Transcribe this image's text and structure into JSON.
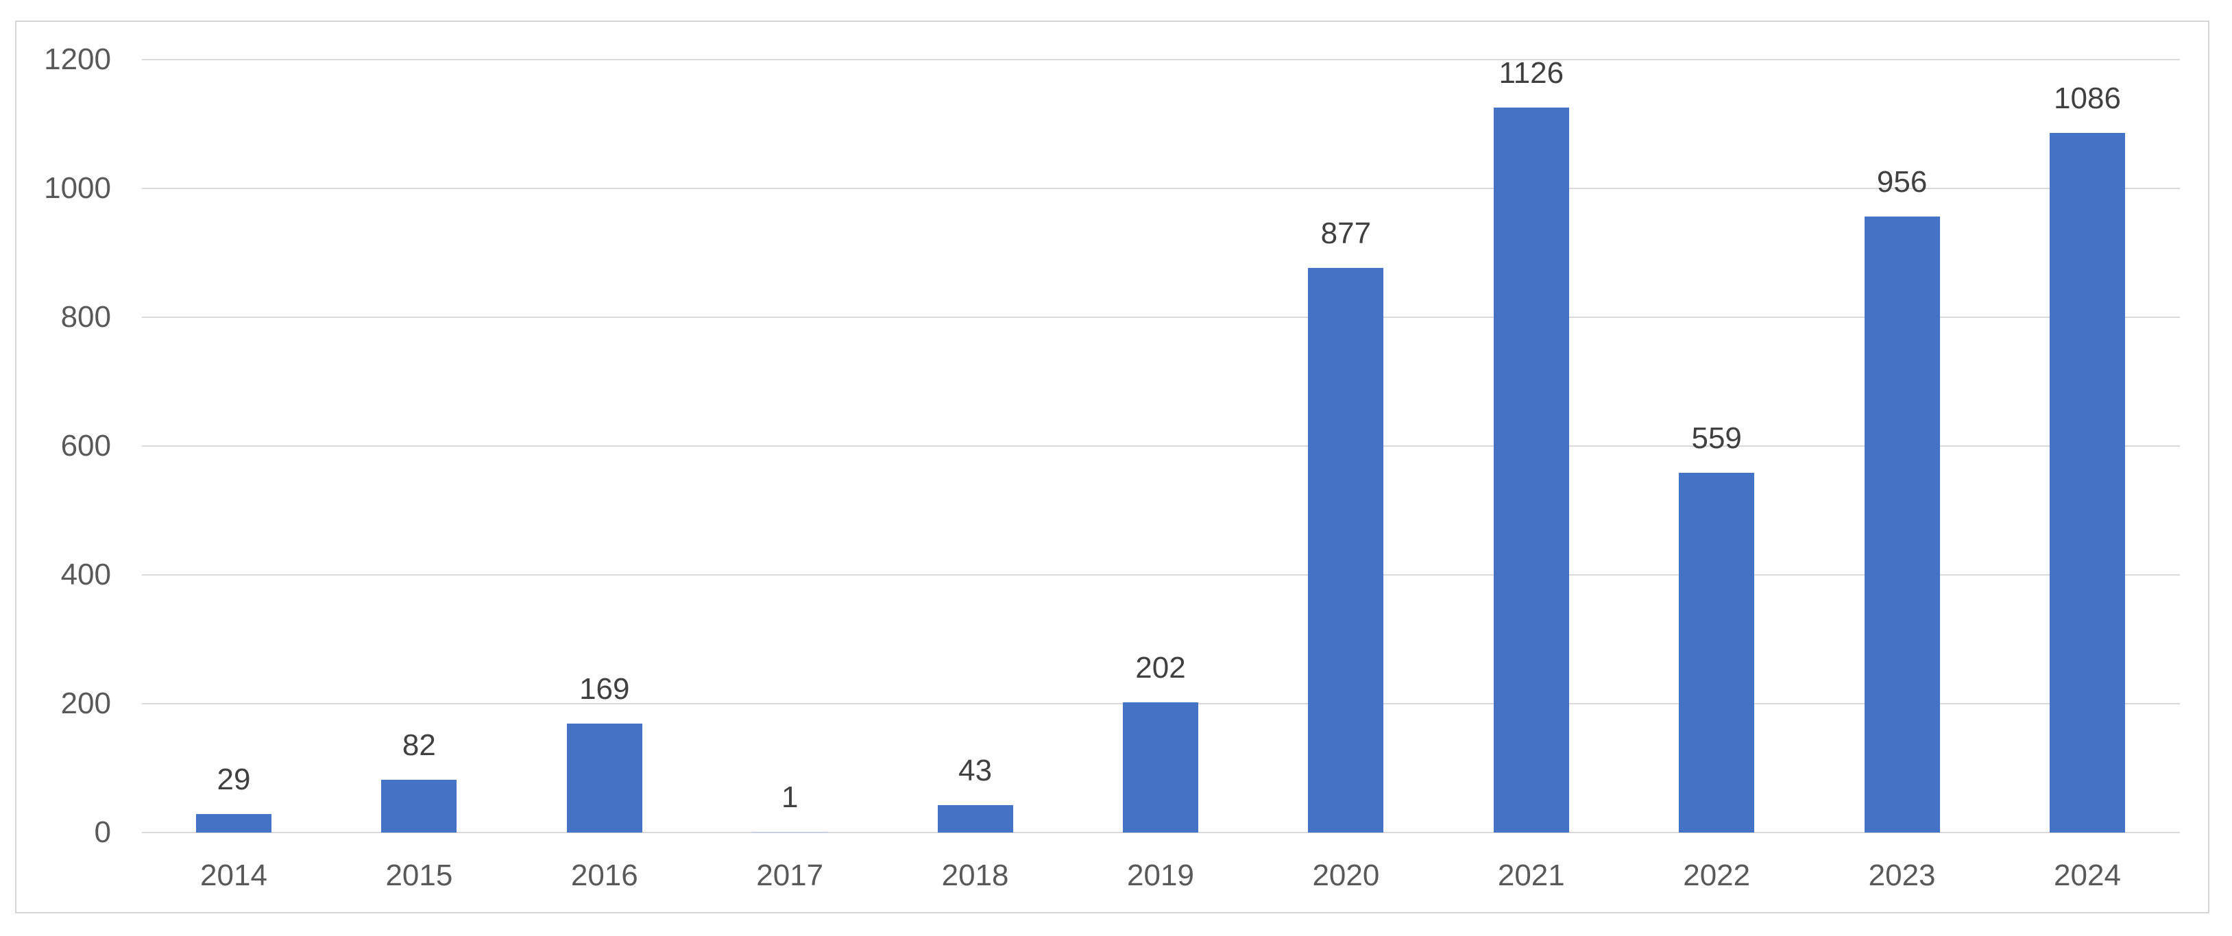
{
  "chart_data": {
    "type": "bar",
    "categories": [
      "2014",
      "2015",
      "2016",
      "2017",
      "2018",
      "2019",
      "2020",
      "2021",
      "2022",
      "2023",
      "2024"
    ],
    "values": [
      29,
      82,
      169,
      1,
      43,
      202,
      877,
      1126,
      559,
      956,
      1086
    ],
    "data_labels": [
      29,
      82,
      169,
      1,
      43,
      202,
      877,
      1126,
      559,
      956,
      1086
    ],
    "title": "",
    "xlabel": "",
    "ylabel": "",
    "ylim": [
      0,
      1200
    ],
    "yticks": [
      0,
      200,
      400,
      600,
      800,
      1000,
      1200
    ],
    "grid": true,
    "legend": false,
    "colors": {
      "bar": "#4472C4",
      "bar_tiny": "#b4c7e7",
      "gridline": "#d9d9d9",
      "frame_border": "#d6d6d6",
      "axis_label": "#595959",
      "data_label": "#404040",
      "background": "#ffffff"
    }
  }
}
